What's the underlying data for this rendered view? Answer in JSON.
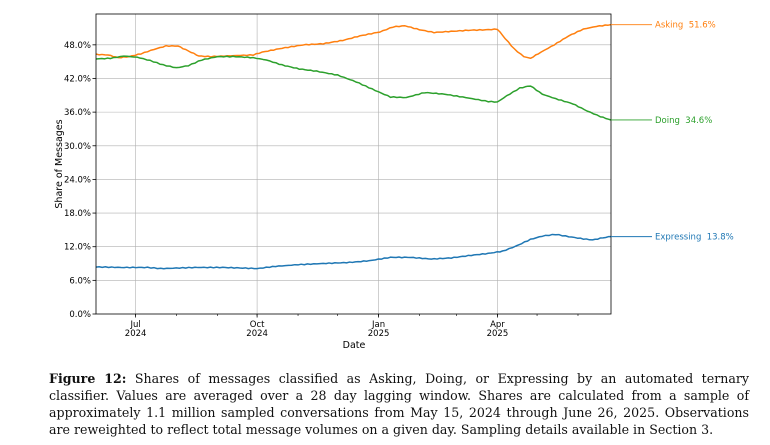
{
  "chart_data": {
    "type": "line",
    "title": "",
    "xlabel": "Date",
    "ylabel": "Share of Messages",
    "xlim": [
      "2024-06-01",
      "2025-06-26"
    ],
    "ylim": [
      0,
      53.5
    ],
    "y_tick_values": [
      0,
      6,
      12,
      18,
      24,
      30,
      36,
      42,
      48
    ],
    "y_tick_labels": [
      "0.0%",
      "6.0%",
      "12.0%",
      "18.0%",
      "24.0%",
      "30.0%",
      "36.0%",
      "42.0%",
      "48.0%"
    ],
    "x_ticks": [
      {
        "date": "2024-07-01",
        "label": "Jul",
        "year": "2024"
      },
      {
        "date": "2024-10-01",
        "label": "Oct",
        "year": "2024"
      },
      {
        "date": "2025-01-01",
        "label": "Jan",
        "year": "2025"
      },
      {
        "date": "2025-04-01",
        "label": "Apr",
        "year": "2025"
      }
    ],
    "grid": true,
    "legend": "inline-right",
    "series": [
      {
        "name": "Asking",
        "end_label": "Asking  51.6%",
        "color": "#ff7f0e",
        "points": [
          [
            "2024-06-01",
            46.3
          ],
          [
            "2024-06-10",
            46.2
          ],
          [
            "2024-06-18",
            45.7
          ],
          [
            "2024-06-26",
            45.9
          ],
          [
            "2024-07-05",
            46.4
          ],
          [
            "2024-07-15",
            47.2
          ],
          [
            "2024-07-24",
            47.8
          ],
          [
            "2024-08-02",
            47.8
          ],
          [
            "2024-08-10",
            46.9
          ],
          [
            "2024-08-18",
            46.0
          ],
          [
            "2024-08-27",
            45.9
          ],
          [
            "2024-09-06",
            46.0
          ],
          [
            "2024-09-16",
            46.1
          ],
          [
            "2024-09-28",
            46.2
          ],
          [
            "2024-10-05",
            46.7
          ],
          [
            "2024-10-20",
            47.4
          ],
          [
            "2024-11-05",
            48.0
          ],
          [
            "2024-11-20",
            48.2
          ],
          [
            "2024-12-05",
            48.8
          ],
          [
            "2024-12-18",
            49.6
          ],
          [
            "2025-01-02",
            50.3
          ],
          [
            "2025-01-12",
            51.2
          ],
          [
            "2025-01-21",
            51.4
          ],
          [
            "2025-02-01",
            50.7
          ],
          [
            "2025-02-12",
            50.2
          ],
          [
            "2025-02-25",
            50.4
          ],
          [
            "2025-03-10",
            50.6
          ],
          [
            "2025-03-25",
            50.7
          ],
          [
            "2025-04-01",
            50.8
          ],
          [
            "2025-04-07",
            49.1
          ],
          [
            "2025-04-14",
            47.2
          ],
          [
            "2025-04-21",
            45.9
          ],
          [
            "2025-04-26",
            45.6
          ],
          [
            "2025-05-04",
            46.7
          ],
          [
            "2025-05-14",
            48.0
          ],
          [
            "2025-05-25",
            49.6
          ],
          [
            "2025-06-05",
            50.8
          ],
          [
            "2025-06-15",
            51.3
          ],
          [
            "2025-06-26",
            51.6
          ]
        ]
      },
      {
        "name": "Doing",
        "end_label": "Doing  34.6%",
        "color": "#2ca02c",
        "points": [
          [
            "2024-06-01",
            45.5
          ],
          [
            "2024-06-12",
            45.6
          ],
          [
            "2024-06-22",
            46.0
          ],
          [
            "2024-07-02",
            45.8
          ],
          [
            "2024-07-12",
            45.2
          ],
          [
            "2024-07-22",
            44.4
          ],
          [
            "2024-08-01",
            43.9
          ],
          [
            "2024-08-10",
            44.3
          ],
          [
            "2024-08-20",
            45.3
          ],
          [
            "2024-09-01",
            45.9
          ],
          [
            "2024-09-15",
            45.9
          ],
          [
            "2024-09-28",
            45.7
          ],
          [
            "2024-10-08",
            45.3
          ],
          [
            "2024-10-20",
            44.4
          ],
          [
            "2024-11-02",
            43.7
          ],
          [
            "2024-11-15",
            43.3
          ],
          [
            "2024-12-01",
            42.6
          ],
          [
            "2024-12-15",
            41.4
          ],
          [
            "2025-01-01",
            39.6
          ],
          [
            "2025-01-10",
            38.7
          ],
          [
            "2025-01-22",
            38.6
          ],
          [
            "2025-02-05",
            39.5
          ],
          [
            "2025-02-20",
            39.2
          ],
          [
            "2025-03-08",
            38.6
          ],
          [
            "2025-03-25",
            37.9
          ],
          [
            "2025-04-01",
            37.8
          ],
          [
            "2025-04-08",
            38.9
          ],
          [
            "2025-04-18",
            40.3
          ],
          [
            "2025-04-26",
            40.7
          ],
          [
            "2025-05-05",
            39.2
          ],
          [
            "2025-05-15",
            38.4
          ],
          [
            "2025-05-28",
            37.5
          ],
          [
            "2025-06-08",
            36.2
          ],
          [
            "2025-06-18",
            35.2
          ],
          [
            "2025-06-26",
            34.6
          ]
        ]
      },
      {
        "name": "Expressing",
        "end_label": "Expressing  13.8%",
        "color": "#1f77b4",
        "points": [
          [
            "2024-06-01",
            8.4
          ],
          [
            "2024-06-20",
            8.3
          ],
          [
            "2024-07-10",
            8.3
          ],
          [
            "2024-07-20",
            8.1
          ],
          [
            "2024-08-15",
            8.3
          ],
          [
            "2024-09-05",
            8.3
          ],
          [
            "2024-09-20",
            8.2
          ],
          [
            "2024-10-01",
            8.1
          ],
          [
            "2024-10-15",
            8.5
          ],
          [
            "2024-11-01",
            8.8
          ],
          [
            "2024-11-20",
            9.0
          ],
          [
            "2024-12-10",
            9.2
          ],
          [
            "2024-12-25",
            9.5
          ],
          [
            "2025-01-10",
            10.1
          ],
          [
            "2025-01-25",
            10.1
          ],
          [
            "2025-02-10",
            9.8
          ],
          [
            "2025-02-25",
            10.0
          ],
          [
            "2025-03-10",
            10.4
          ],
          [
            "2025-03-25",
            10.8
          ],
          [
            "2025-04-05",
            11.2
          ],
          [
            "2025-04-15",
            12.1
          ],
          [
            "2025-04-26",
            13.3
          ],
          [
            "2025-05-05",
            13.9
          ],
          [
            "2025-05-15",
            14.2
          ],
          [
            "2025-05-25",
            13.8
          ],
          [
            "2025-06-05",
            13.4
          ],
          [
            "2025-06-12",
            13.2
          ],
          [
            "2025-06-20",
            13.6
          ],
          [
            "2025-06-26",
            13.8
          ]
        ]
      }
    ]
  },
  "caption": {
    "label": "Figure 12:",
    "text": "Shares of messages classified as Asking, Doing, or Expressing by an automated ternary classifier. Values are averaged over a 28 day lagging window. Shares are calculated from a sample of approximately 1.1 million sampled conversations from May 15, 2024 through June 26, 2025. Observations are reweighted to reflect total message volumes on a given day. Sampling details available in Section 3."
  }
}
